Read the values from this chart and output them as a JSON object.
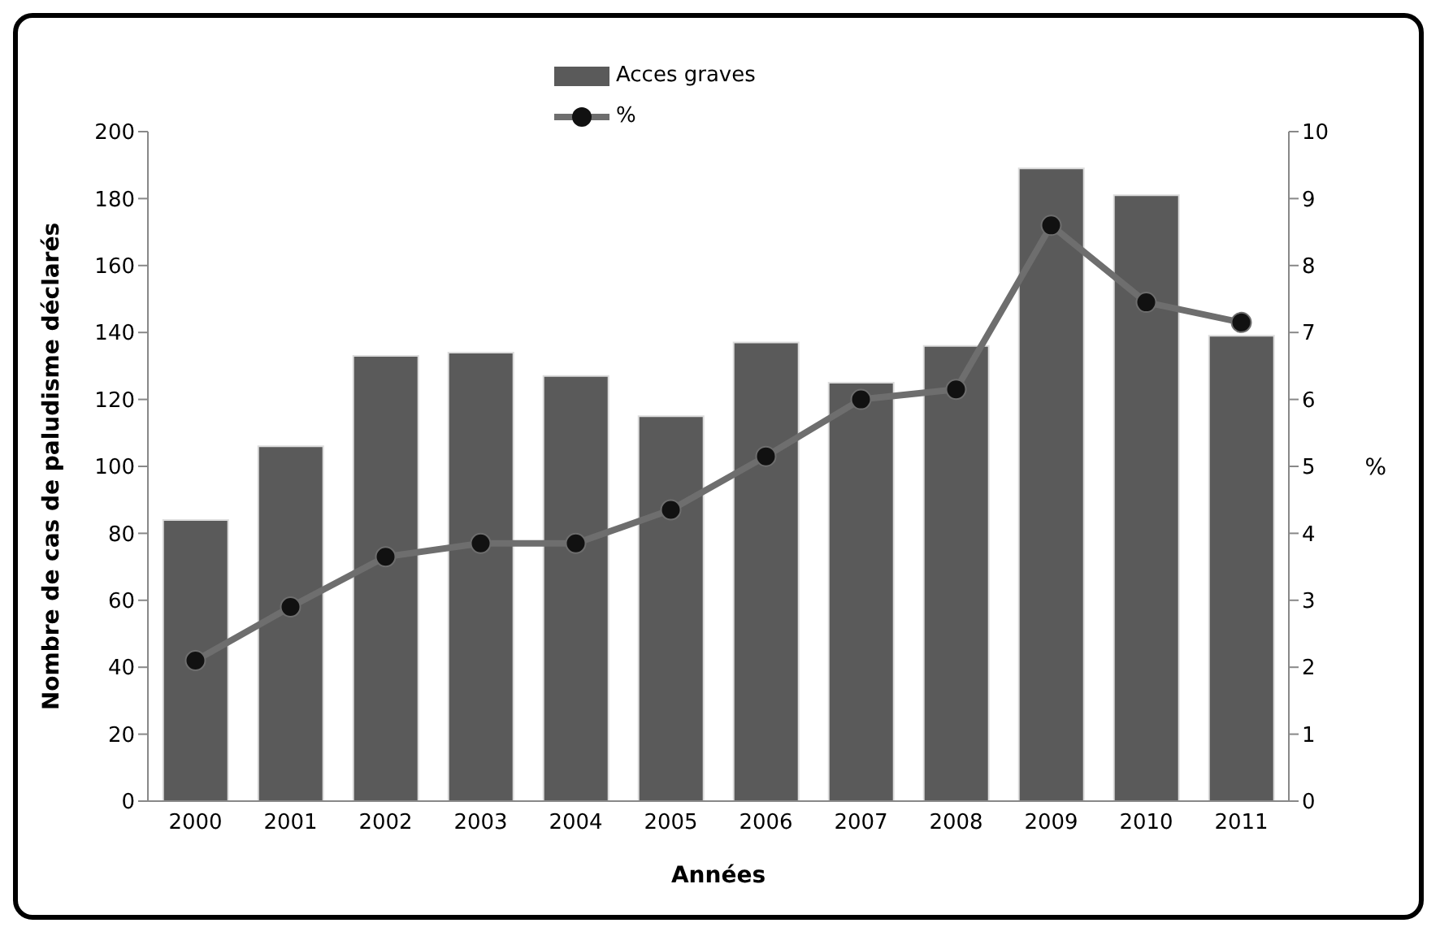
{
  "chart_data": {
    "type": "bar",
    "xlabel": "Années",
    "ylabel": "Nombre de cas de paludisme déclarés",
    "y2label": "%",
    "categories": [
      "2000",
      "2001",
      "2002",
      "2003",
      "2004",
      "2005",
      "2006",
      "2007",
      "2008",
      "2009",
      "2010",
      "2011"
    ],
    "series": [
      {
        "name": "Acces graves",
        "color": "#5a5a5a",
        "values": [
          84,
          106,
          133,
          134,
          127,
          115,
          137,
          125,
          136,
          189,
          181,
          139
        ]
      },
      {
        "name": "%",
        "type": "line",
        "axis": "y2",
        "color": "#6e6e6e",
        "values": [
          2.1,
          2.9,
          3.65,
          3.85,
          3.85,
          4.35,
          5.15,
          6.0,
          6.15,
          8.6,
          7.45,
          7.15
        ]
      }
    ],
    "ylim": [
      0,
      200
    ],
    "yticks": [
      0,
      20,
      40,
      60,
      80,
      100,
      120,
      140,
      160,
      180,
      200
    ],
    "y2lim": [
      0,
      10
    ],
    "y2ticks": [
      0,
      1,
      2,
      3,
      4,
      5,
      6,
      7,
      8,
      9,
      10
    ],
    "marker": "circle",
    "grid": false,
    "legend": "top"
  }
}
